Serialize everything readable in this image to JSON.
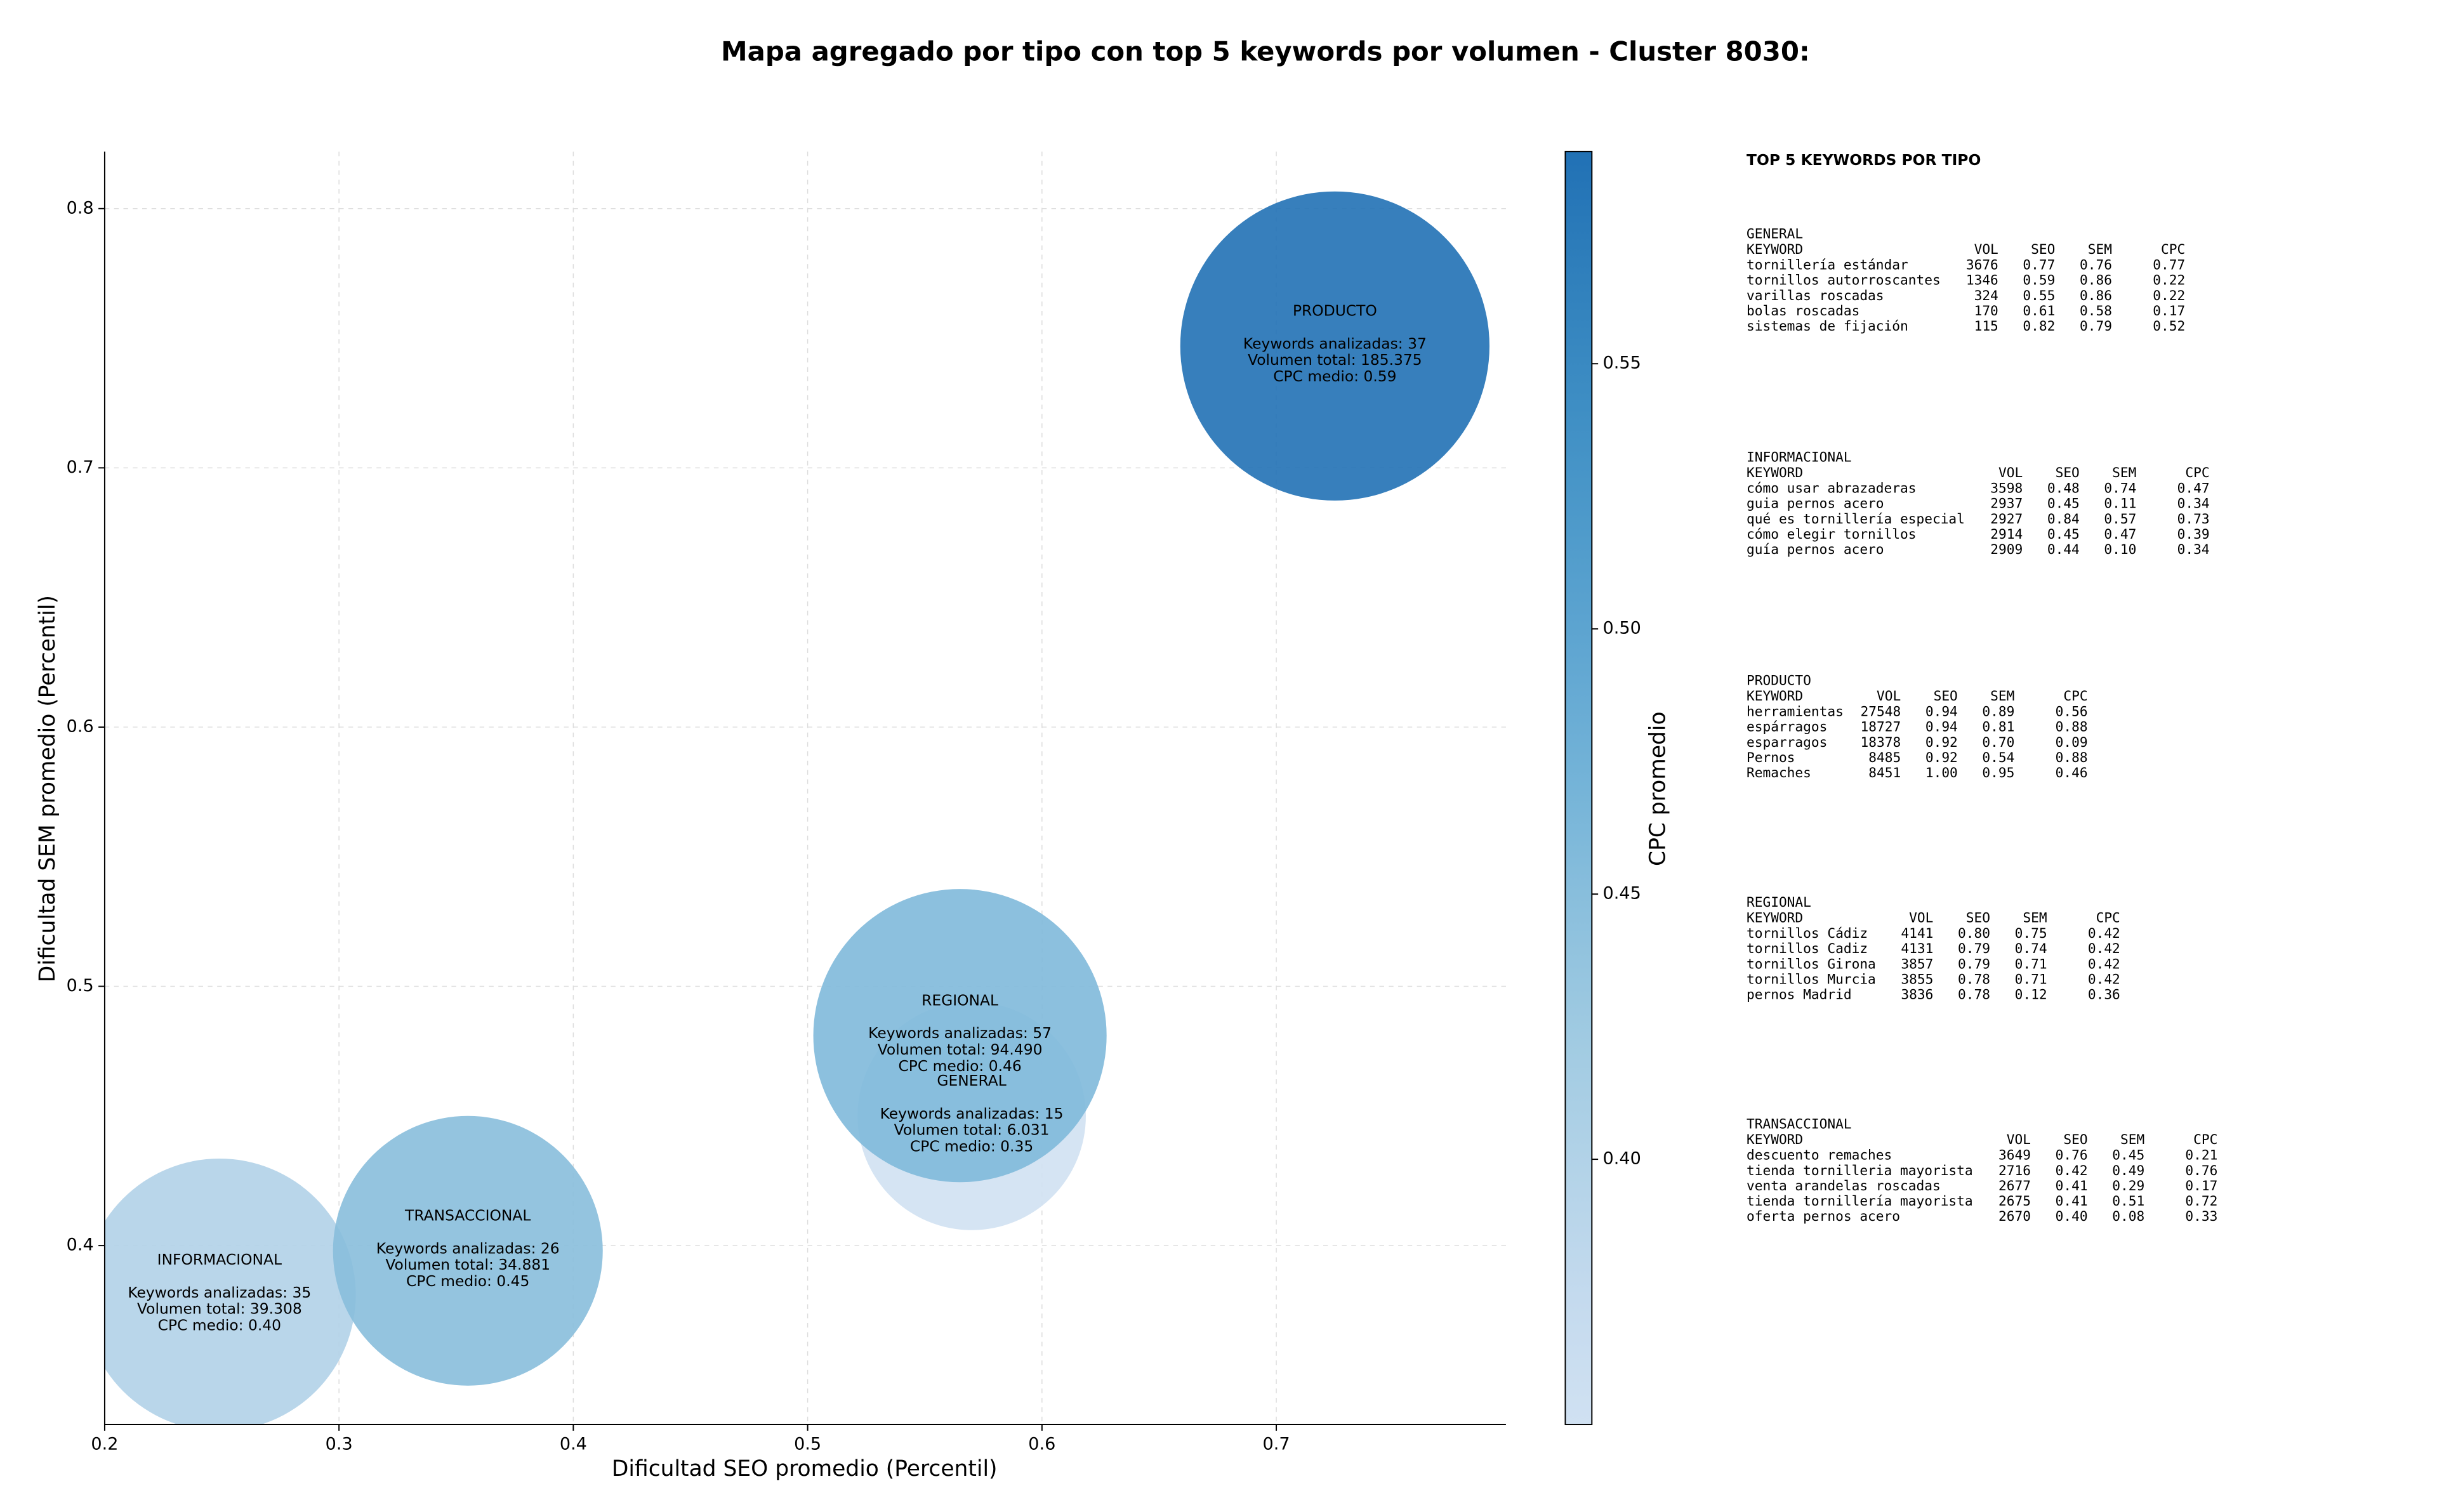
{
  "chart_data": {
    "type": "bubble",
    "title": "Mapa agregado por tipo con top 5 keywords por volumen - Cluster 8030:",
    "xlabel": "Dificultad SEO promedio (Percentil)",
    "ylabel": "Dificultad SEM promedio (Percentil)",
    "xlim": [
      0.2,
      0.798
    ],
    "ylim": [
      0.331,
      0.822
    ],
    "xticks": [
      0.2,
      0.3,
      0.4,
      0.5,
      0.6,
      0.7
    ],
    "yticks": [
      0.4,
      0.5,
      0.6,
      0.7,
      0.8
    ],
    "grid": true,
    "cmap": "Blues",
    "colorbar": {
      "label": "CPC promedio",
      "lim": [
        0.35,
        0.59
      ],
      "ticks": [
        {
          "value": 0.4,
          "label": "0.40"
        },
        0.45,
        {
          "value": 0.5,
          "label": "0.50"
        },
        0.55
      ]
    },
    "points": [
      {
        "name": "GENERAL",
        "x": 0.57,
        "y": 0.45,
        "size": 6031,
        "cpc": 0.35,
        "lines": [
          "Keywords analizadas: 15",
          "Volumen total: 6.031",
          "CPC medio: 0.35"
        ]
      },
      {
        "name": "INFORMACIONAL",
        "x": 0.249,
        "y": 0.381,
        "size": 39308,
        "cpc": 0.4,
        "lines": [
          "Keywords analizadas: 35",
          "Volumen total: 39.308",
          "CPC medio: 0.40"
        ]
      },
      {
        "name": "PRODUCTO",
        "x": 0.725,
        "y": 0.747,
        "size": 185375,
        "cpc": 0.59,
        "lines": [
          "Keywords analizadas: 37",
          "Volumen total: 185.375",
          "CPC medio: 0.59"
        ]
      },
      {
        "name": "REGIONAL",
        "x": 0.565,
        "y": 0.481,
        "size": 94490,
        "cpc": 0.46,
        "lines": [
          "Keywords analizadas: 57",
          "Volumen total: 94.490",
          "CPC medio: 0.46"
        ]
      },
      {
        "name": "TRANSACCIONAL",
        "x": 0.355,
        "y": 0.398,
        "size": 34881,
        "cpc": 0.45,
        "lines": [
          "Keywords analizadas: 26",
          "Volumen total: 34.881",
          "CPC medio: 0.45"
        ]
      }
    ]
  },
  "top_keywords": {
    "title": "TOP 5 KEYWORDS POR TIPO",
    "columns": [
      "KEYWORD",
      "VOL",
      "SEO",
      "SEM",
      "CPC"
    ],
    "sections": [
      {
        "name": "GENERAL",
        "rows": [
          [
            "tornillería estándar",
            "3676",
            "0.77",
            "0.76",
            "0.77"
          ],
          [
            "tornillos autorroscantes",
            "1346",
            "0.59",
            "0.86",
            "0.22"
          ],
          [
            "varillas roscadas",
            "324",
            "0.55",
            "0.86",
            "0.22"
          ],
          [
            "bolas roscadas",
            "170",
            "0.61",
            "0.58",
            "0.17"
          ],
          [
            "sistemas de fijación",
            "115",
            "0.82",
            "0.79",
            "0.52"
          ]
        ]
      },
      {
        "name": "INFORMACIONAL",
        "rows": [
          [
            "cómo usar abrazaderas",
            "3598",
            "0.48",
            "0.74",
            "0.47"
          ],
          [
            "guia pernos acero",
            "2937",
            "0.45",
            "0.11",
            "0.34"
          ],
          [
            "qué es tornillería especial",
            "2927",
            "0.84",
            "0.57",
            "0.73"
          ],
          [
            "cómo elegir tornillos",
            "2914",
            "0.45",
            "0.47",
            "0.39"
          ],
          [
            "guía pernos acero",
            "2909",
            "0.44",
            "0.10",
            "0.34"
          ]
        ]
      },
      {
        "name": "PRODUCTO",
        "rows": [
          [
            "herramientas",
            "27548",
            "0.94",
            "0.89",
            "0.56"
          ],
          [
            "espárragos",
            "18727",
            "0.94",
            "0.81",
            "0.88"
          ],
          [
            "esparragos",
            "18378",
            "0.92",
            "0.70",
            "0.09"
          ],
          [
            "Pernos",
            "8485",
            "0.92",
            "0.54",
            "0.88"
          ],
          [
            "Remaches",
            "8451",
            "1.00",
            "0.95",
            "0.46"
          ]
        ]
      },
      {
        "name": "REGIONAL",
        "rows": [
          [
            "tornillos Cádiz",
            "4141",
            "0.80",
            "0.75",
            "0.42"
          ],
          [
            "tornillos Cadiz",
            "4131",
            "0.79",
            "0.74",
            "0.42"
          ],
          [
            "tornillos Girona",
            "3857",
            "0.79",
            "0.71",
            "0.42"
          ],
          [
            "tornillos Murcia",
            "3855",
            "0.78",
            "0.71",
            "0.42"
          ],
          [
            "pernos Madrid",
            "3836",
            "0.78",
            "0.12",
            "0.36"
          ]
        ]
      },
      {
        "name": "TRANSACCIONAL",
        "rows": [
          [
            "descuento remaches",
            "3649",
            "0.76",
            "0.45",
            "0.21"
          ],
          [
            "tienda tornilleria mayorista",
            "2716",
            "0.42",
            "0.49",
            "0.76"
          ],
          [
            "venta arandelas roscadas",
            "2677",
            "0.41",
            "0.29",
            "0.17"
          ],
          [
            "tienda tornillería mayorista",
            "2675",
            "0.41",
            "0.51",
            "0.72"
          ],
          [
            "oferta pernos acero",
            "2670",
            "0.40",
            "0.08",
            "0.33"
          ]
        ]
      }
    ]
  }
}
